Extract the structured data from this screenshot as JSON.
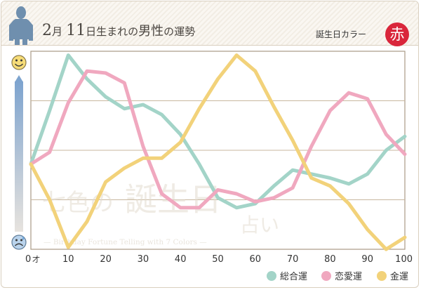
{
  "header": {
    "month": "2",
    "month_unit": "月",
    "day": "11",
    "suffix": "日生まれの",
    "subject": "男性",
    "tail": "の運勢",
    "color_label": "誕生日カラー",
    "color_name": "赤"
  },
  "watermark": {
    "title_a": "七色の",
    "title_b": "誕生日",
    "title_c": "占い",
    "subtitle": "— Birthday Fortune Telling with 7 Colors —"
  },
  "colors": {
    "general": "#a3d4c8",
    "love": "#f0a8bf",
    "money": "#f2d27a",
    "grid": "#c8b79f",
    "axis": "#a99a85"
  },
  "chart_data": {
    "type": "line",
    "title": "",
    "xlabel": "",
    "ylabel": "",
    "x_unit": "才",
    "xlim": [
      0,
      100
    ],
    "ylim": [
      0,
      100
    ],
    "x": [
      0,
      5,
      10,
      15,
      20,
      25,
      30,
      35,
      40,
      45,
      50,
      55,
      60,
      65,
      70,
      75,
      80,
      85,
      90,
      95,
      100
    ],
    "x_ticks": [
      {
        "value": 0,
        "label": "0"
      },
      {
        "value": 10,
        "label": "10"
      },
      {
        "value": 20,
        "label": "20"
      },
      {
        "value": 30,
        "label": "30"
      },
      {
        "value": 40,
        "label": "40"
      },
      {
        "value": 50,
        "label": "50"
      },
      {
        "value": 60,
        "label": "60"
      },
      {
        "value": 70,
        "label": "70"
      },
      {
        "value": 80,
        "label": "80"
      },
      {
        "value": 90,
        "label": "90"
      },
      {
        "value": 100,
        "label": "100"
      }
    ],
    "y_gridlines": [
      25,
      50,
      75
    ],
    "y_top_icon": "happy-face-icon",
    "y_bottom_icon": "sad-face-icon",
    "series": [
      {
        "key": "general",
        "name": "総合運",
        "values": [
          43,
          70,
          98,
          86,
          77,
          71,
          73,
          68,
          58,
          43,
          26,
          21,
          23,
          32,
          40,
          38,
          36,
          33,
          38,
          50,
          57
        ]
      },
      {
        "key": "love",
        "name": "恋愛運",
        "values": [
          43,
          49,
          74,
          90,
          89,
          84,
          52,
          28,
          21,
          21,
          30,
          28,
          24,
          26,
          31,
          52,
          70,
          79,
          76,
          58,
          48
        ]
      },
      {
        "key": "money",
        "name": "金運",
        "values": [
          43,
          25,
          1,
          14,
          34,
          41,
          46,
          46,
          54,
          71,
          86,
          98,
          90,
          72,
          55,
          36,
          32,
          23,
          10,
          0,
          6
        ]
      }
    ]
  }
}
